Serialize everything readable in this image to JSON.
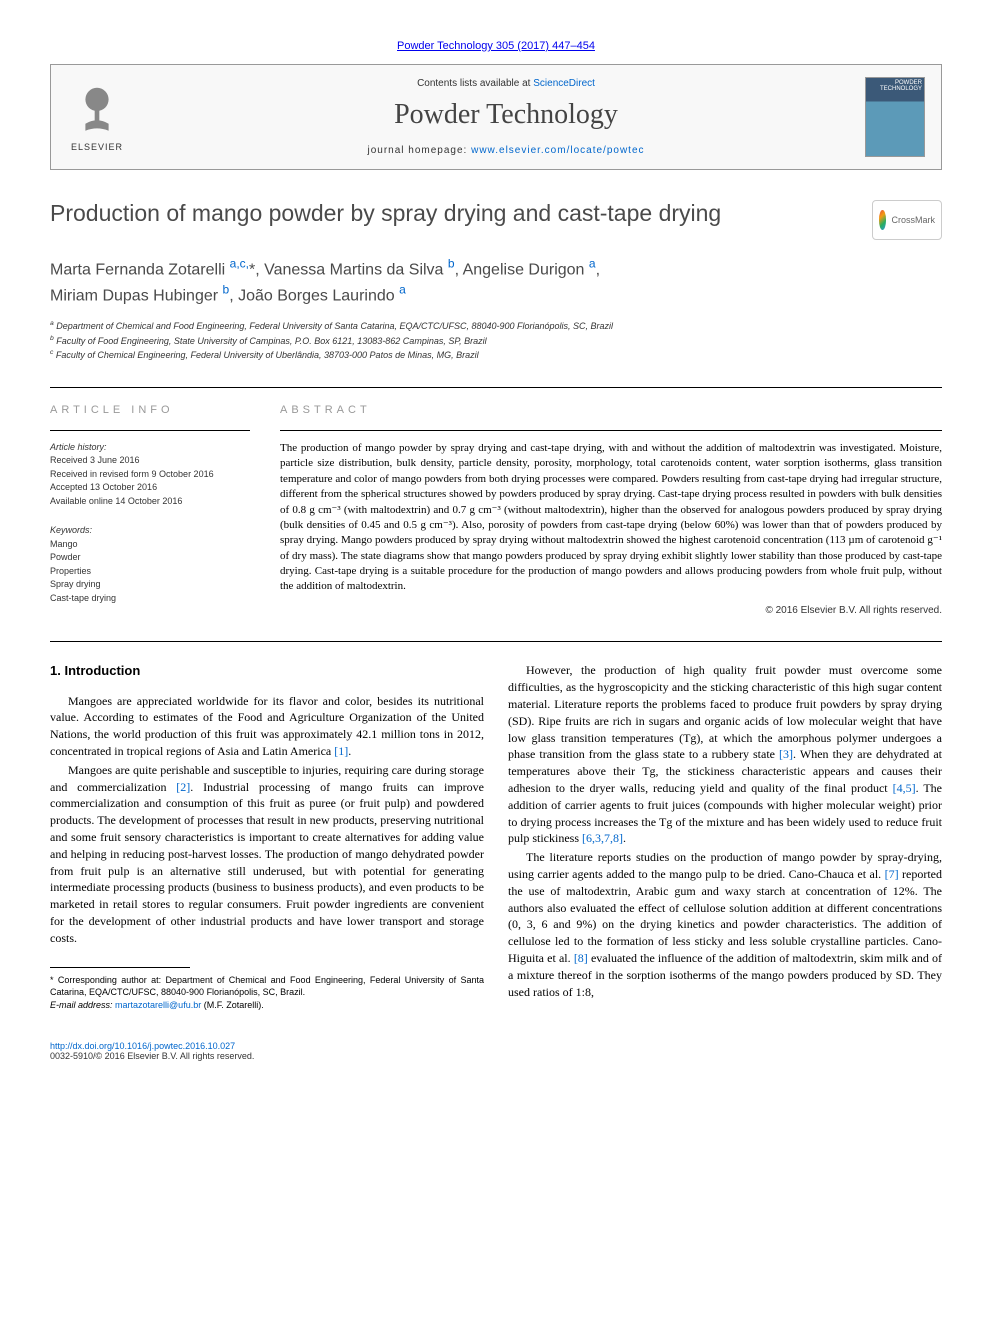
{
  "top_link": "Powder Technology 305 (2017) 447–454",
  "header": {
    "contents_prefix": "Contents lists available at ",
    "contents_link": "ScienceDirect",
    "journal_title": "Powder Technology",
    "homepage_prefix": "journal homepage: ",
    "homepage_url": "www.elsevier.com/locate/powtec",
    "elsevier_label": "ELSEVIER",
    "cover_label": "POWDER TECHNOLOGY"
  },
  "article": {
    "title": "Production of mango powder by spray drying and cast-tape drying",
    "crossmark_label": "CrossMark"
  },
  "authors_html": "Marta Fernanda Zotarelli <a href='#'><sup>a,c,</sup></a>*, Vanessa Martins da Silva <a href='#'><sup>b</sup></a>, Angelise Durigon <a href='#'><sup>a</sup></a>,<br>Miriam Dupas Hubinger <a href='#'><sup>b</sup></a>, João Borges Laurindo <a href='#'><sup>a</sup></a>",
  "affiliations": {
    "a": "Department of Chemical and Food Engineering, Federal University of Santa Catarina, EQA/CTC/UFSC, 88040-900 Florianópolis, SC, Brazil",
    "b": "Faculty of Food Engineering, State University of Campinas, P.O. Box 6121, 13083-862 Campinas, SP, Brazil",
    "c": "Faculty of Chemical Engineering, Federal University of Uberlândia, 38703-000 Patos de Minas, MG, Brazil"
  },
  "article_info": {
    "header": "article info",
    "history_label": "Article history:",
    "received": "Received 3 June 2016",
    "revised": "Received in revised form 9 October 2016",
    "accepted": "Accepted 13 October 2016",
    "online": "Available online 14 October 2016",
    "keywords_label": "Keywords:",
    "keywords": [
      "Mango",
      "Powder",
      "Properties",
      "Spray drying",
      "Cast-tape drying"
    ]
  },
  "abstract": {
    "header": "abstract",
    "text": "The production of mango powder by spray drying and cast-tape drying, with and without the addition of maltodextrin was investigated. Moisture, particle size distribution, bulk density, particle density, porosity, morphology, total carotenoids content, water sorption isotherms, glass transition temperature and color of mango powders from both drying processes were compared. Powders resulting from cast-tape drying had irregular structure, different from the spherical structures showed by powders produced by spray drying. Cast-tape drying process resulted in powders with bulk densities of 0.8 g cm⁻³ (with maltodextrin) and 0.7 g cm⁻³ (without maltodextrin), higher than the observed for analogous powders produced by spray drying (bulk densities of 0.45 and 0.5 g cm⁻³). Also, porosity of powders from cast-tape drying (below 60%) was lower than that of powders produced by spray drying. Mango powders produced by spray drying without maltodextrin showed the highest carotenoid concentration (113 µm of carotenoid g⁻¹ of dry mass). The state diagrams show that mango powders produced by spray drying exhibit slightly lower stability than those produced by cast-tape drying. Cast-tape drying is a suitable procedure for the production of mango powders and allows producing powders from whole fruit pulp, without the addition of maltodextrin.",
    "copyright": "© 2016 Elsevier B.V. All rights reserved."
  },
  "body": {
    "section_title": "1. Introduction",
    "col1_p1": "Mangoes are appreciated worldwide for its flavor and color, besides its nutritional value. According to estimates of the Food and Agriculture Organization of the United Nations, the world production of this fruit was approximately 42.1 million tons in 2012, concentrated in tropical regions of Asia and Latin America ",
    "ref1": "[1]",
    "col1_p2": "Mangoes are quite perishable and susceptible to injuries, requiring care during storage and commercialization ",
    "ref2": "[2]",
    "col1_p2b": ". Industrial processing of mango fruits can improve commercialization and consumption of this fruit as puree (or fruit pulp) and powdered products. The development of processes that result in new products, preserving nutritional and some fruit sensory characteristics is important to create alternatives for adding value and helping in reducing post-harvest losses. The production of mango dehydrated powder from fruit pulp is an alternative still underused, but with potential for generating intermediate processing products (business to business products), and even products to be marketed in retail stores to regular consumers. Fruit powder ingredients are convenient for the development of other industrial products and have lower transport and storage costs.",
    "col2_p1": "However, the production of high quality fruit powder must overcome some difficulties, as the hygroscopicity and the sticking characteristic of this high sugar content material. Literature reports the problems faced to produce fruit powders by spray drying (SD). Ripe fruits are rich in sugars and organic acids of low molecular weight that have low glass transition temperatures (Tg), at which the amorphous polymer undergoes a phase transition from the glass state to a rubbery state ",
    "ref3": "[3]",
    "col2_p1b": ". When they are dehydrated at temperatures above their Tg, the stickiness characteristic appears and causes their adhesion to the dryer walls, reducing yield and quality of the final product ",
    "ref45": "[4,5]",
    "col2_p1c": ". The addition of carrier agents to fruit juices (compounds with higher molecular weight) prior to drying process increases the Tg of the mixture and has been widely used to reduce fruit pulp stickiness ",
    "ref6378": "[6,3,7,8]",
    "col2_p2": "The literature reports studies on the production of mango powder by spray-drying, using carrier agents added to the mango pulp to be dried. Cano-Chauca et al. ",
    "ref7": "[7]",
    "col2_p2b": " reported the use of maltodextrin, Arabic gum and waxy starch at concentration of 12%. The authors also evaluated the effect of cellulose solution addition at different concentrations (0, 3, 6 and 9%) on the drying kinetics and powder characteristics. The addition of cellulose led to the formation of less sticky and less soluble crystalline particles. Cano-Higuita et al. ",
    "ref8": "[8]",
    "col2_p2c": " evaluated the influence of the addition of maltodextrin, skim milk and of a mixture thereof in the sorption isotherms of the mango powders produced by SD. They used ratios of 1:8,"
  },
  "footnotes": {
    "corr": "* Corresponding author at: Department of Chemical and Food Engineering, Federal University of Santa Catarina, EQA/CTC/UFSC, 88040-900 Florianópolis, SC, Brazil.",
    "email_label": "E-mail address: ",
    "email": "martazotarelli@ufu.br",
    "email_suffix": " (M.F. Zotarelli)."
  },
  "footer": {
    "doi": "http://dx.doi.org/10.1016/j.powtec.2016.10.027",
    "issn": "0032-5910/© 2016 Elsevier B.V. All rights reserved."
  },
  "colors": {
    "link": "#0066cc",
    "text": "#000000",
    "heading_gray": "#4a4a4a",
    "light_gray": "#999999"
  }
}
